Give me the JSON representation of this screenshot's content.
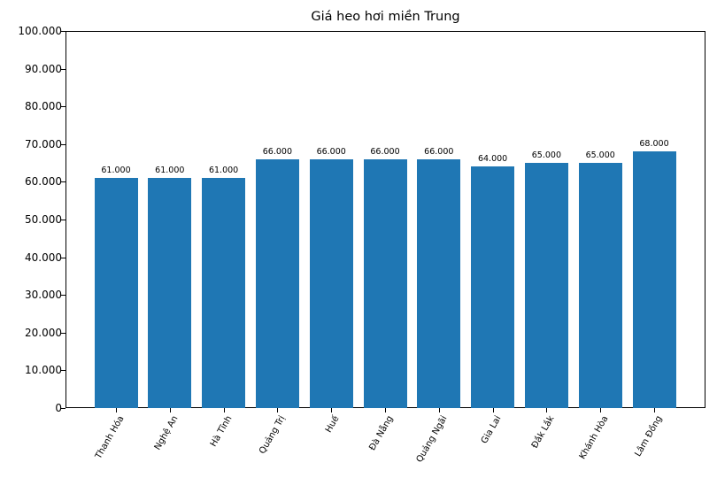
{
  "chart_data": {
    "type": "bar",
    "title": "Giá heo hơi miền Trung",
    "xlabel": "",
    "ylabel": "",
    "categories": [
      "Thanh Hóa",
      "Nghệ An",
      "Hà Tĩnh",
      "Quảng Trị",
      "Huế",
      "Đà Nẵng",
      "Quảng Ngãi",
      "Gia Lai",
      "Đắk Lắk",
      "Khánh Hòa",
      "Lâm Đồng"
    ],
    "values": [
      61000,
      61000,
      61000,
      66000,
      66000,
      66000,
      66000,
      64000,
      65000,
      65000,
      68000
    ],
    "value_labels": [
      "61.000",
      "61.000",
      "61.000",
      "66.000",
      "66.000",
      "66.000",
      "66.000",
      "64.000",
      "65.000",
      "65.000",
      "68.000"
    ],
    "ylim": [
      0,
      100000
    ],
    "yticks": [
      0,
      10000,
      20000,
      30000,
      40000,
      50000,
      60000,
      70000,
      80000,
      90000,
      100000
    ],
    "ytick_labels": [
      "0",
      "10.000",
      "20.000",
      "30.000",
      "40.000",
      "50.000",
      "60.000",
      "70.000",
      "80.000",
      "90.000",
      "100.000"
    ],
    "bar_color": "#1f77b4",
    "grid": false,
    "legend": null,
    "xtick_rotation": -60
  }
}
